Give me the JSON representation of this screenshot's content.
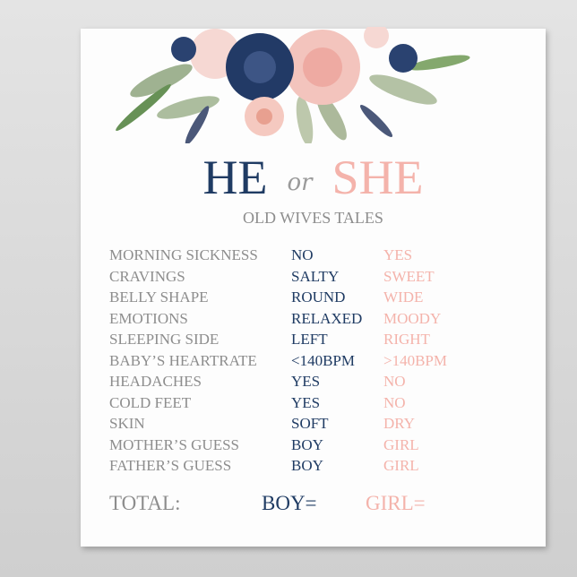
{
  "title": {
    "he": "HE",
    "or": "or",
    "she": "SHE"
  },
  "subtitle": "OLD WIVES TALES",
  "rows": [
    {
      "label": "MORNING SICKNESS",
      "he": "NO",
      "she": "YES"
    },
    {
      "label": "CRAVINGS",
      "he": "SALTY",
      "she": "SWEET"
    },
    {
      "label": "BELLY SHAPE",
      "he": "ROUND",
      "she": "WIDE"
    },
    {
      "label": "EMOTIONS",
      "he": "RELAXED",
      "she": "MOODY"
    },
    {
      "label": "SLEEPING SIDE",
      "he": "LEFT",
      "she": "RIGHT"
    },
    {
      "label": "BABY’S HEARTRATE",
      "he": "<140BPM",
      "she": ">140BPM"
    },
    {
      "label": "HEADACHES",
      "he": "YES",
      "she": "NO"
    },
    {
      "label": "COLD FEET",
      "he": "YES",
      "she": "NO"
    },
    {
      "label": "SKIN",
      "he": "SOFT",
      "she": "DRY"
    },
    {
      "label": "MOTHER’S GUESS",
      "he": "BOY",
      "she": "GIRL"
    },
    {
      "label": "FATHER’S GUESS",
      "he": "BOY",
      "she": "GIRL"
    }
  ],
  "total": {
    "label": "TOTAL:",
    "boy": "BOY=",
    "girl": "GIRL="
  },
  "colors": {
    "navy": "#1f3b63",
    "blush": "#f4b3ab",
    "gray": "#8d8d8d"
  }
}
